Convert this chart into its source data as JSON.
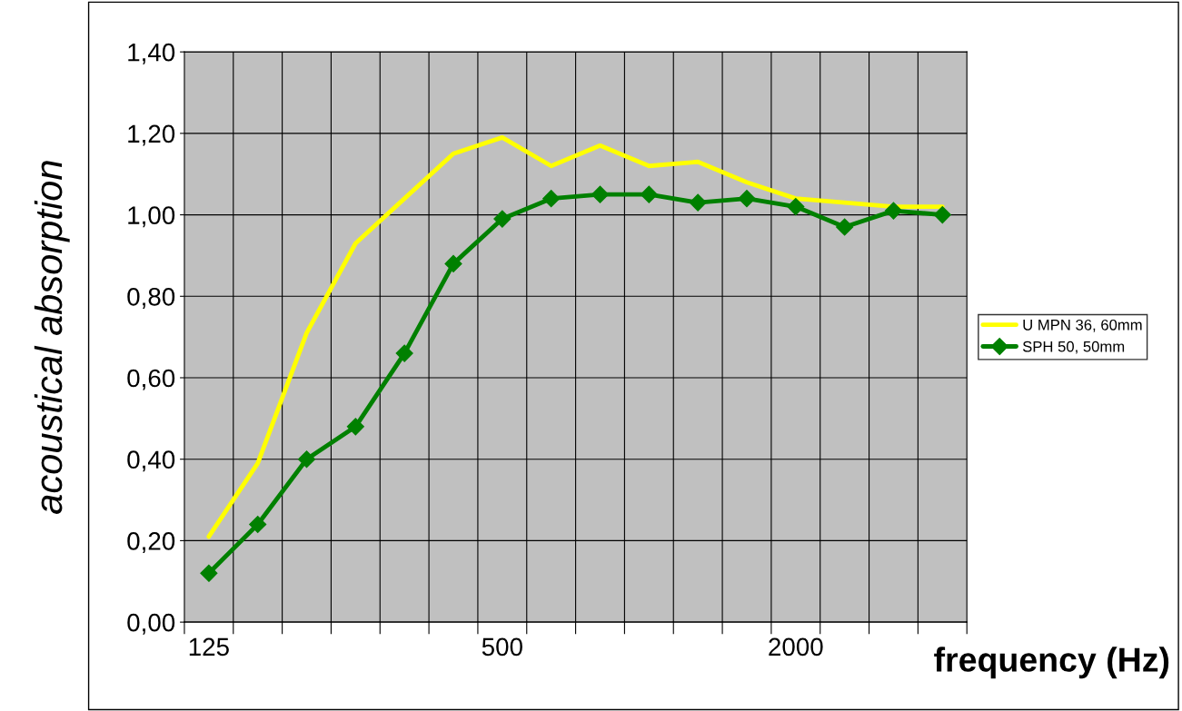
{
  "chart_data": {
    "type": "line",
    "xlabel": "frequency (Hz)",
    "ylabel": "acoustical absorption",
    "categories": [
      "125",
      null,
      null,
      null,
      null,
      null,
      "500",
      null,
      null,
      null,
      null,
      null,
      "2000",
      null,
      null,
      null
    ],
    "series": [
      {
        "name": "U MPN 36, 60mm",
        "color": "#ffff00",
        "marker": "none",
        "values": [
          0.21,
          0.39,
          0.71,
          0.93,
          1.04,
          1.15,
          1.19,
          1.12,
          1.17,
          1.12,
          1.13,
          1.08,
          1.04,
          1.03,
          1.02,
          1.02
        ]
      },
      {
        "name": "SPH 50, 50mm",
        "color": "#008000",
        "marker": "diamond",
        "values": [
          0.12,
          0.24,
          0.4,
          0.48,
          0.66,
          0.88,
          0.99,
          1.04,
          1.05,
          1.05,
          1.03,
          1.04,
          1.02,
          0.97,
          1.01,
          1.0
        ]
      }
    ],
    "ylim": [
      0,
      1.4
    ],
    "yticks": [
      {
        "value": 0,
        "label": "0,00"
      },
      {
        "value": 0.2,
        "label": "0,20"
      },
      {
        "value": 0.4,
        "label": "0,40"
      },
      {
        "value": 0.6,
        "label": "0,60"
      },
      {
        "value": 0.8,
        "label": "0,80"
      },
      {
        "value": 1.0,
        "label": "1,00"
      },
      {
        "value": 1.2,
        "label": "1,20"
      },
      {
        "value": 1.4,
        "label": "1,40"
      }
    ],
    "grid": true,
    "legend": "right",
    "line_style": "solid"
  }
}
